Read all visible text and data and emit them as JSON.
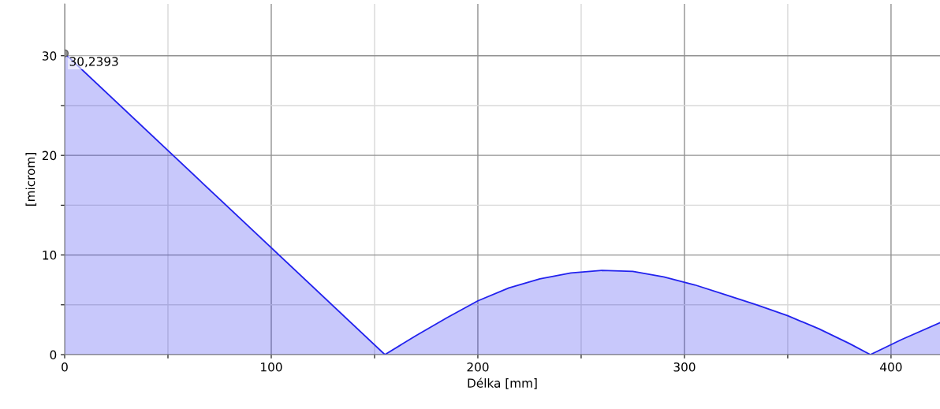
{
  "chart_data": {
    "type": "area",
    "xlabel": "Délka [mm]",
    "ylabel": "[microm]",
    "xlim": [
      0,
      423.7
    ],
    "ylim": [
      0,
      35.2
    ],
    "xticks": [
      0,
      {
        "value": 50,
        "label": null
      },
      100,
      {
        "value": 150,
        "label": null
      },
      200,
      {
        "value": 250,
        "label": null
      },
      300,
      {
        "value": 350,
        "label": null
      },
      400
    ],
    "yticks": [
      0,
      {
        "value": 5,
        "label": null
      },
      10,
      {
        "value": 15,
        "label": null
      },
      20,
      {
        "value": 25,
        "label": null
      },
      30
    ],
    "grid": true,
    "legend": false,
    "series": [
      {
        "color": "#2222ee",
        "x": [
          0,
          155,
          170,
          185,
          200,
          215,
          230,
          245,
          260,
          275,
          290,
          305,
          320,
          335,
          350,
          365,
          380,
          390,
          405,
          423.7
        ],
        "values": [
          30.2393,
          0,
          1.9,
          3.7,
          5.4,
          6.7,
          7.6,
          8.2,
          8.45,
          8.35,
          7.8,
          7.0,
          6.0,
          5.0,
          3.9,
          2.6,
          1.1,
          0,
          1.5,
          3.2
        ]
      },
      {
        "type": "scatter",
        "color": "#909090",
        "marker": "circle",
        "x": [
          0
        ],
        "values": [
          30.2393
        ],
        "value_labels": [
          "30,2393"
        ]
      }
    ]
  }
}
